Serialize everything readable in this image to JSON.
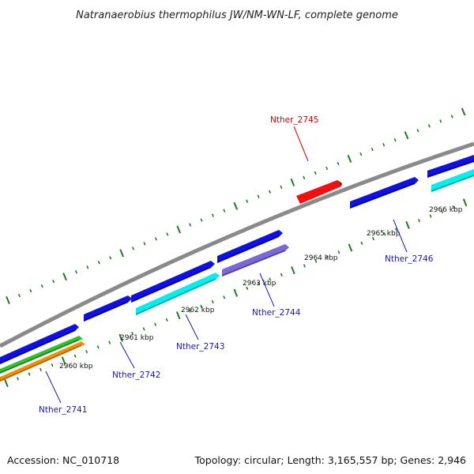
{
  "title": "Natranaerobius thermophilus JW/NM-WN-LF, complete genome",
  "footer": {
    "accession": "Accession: NC_010718",
    "summary": "Topology: circular; Length: 3,165,557 bp; Genes: 2,946"
  },
  "colors": {
    "backbone": "#8a8a8a",
    "tick": "#1f7a1f",
    "label_blue": "#1a1aa8",
    "label_red": "#cc0000",
    "gene_blue": "#1010e0",
    "gene_cyan": "#00f0f0",
    "gene_purple": "#7a68d8",
    "gene_red": "#f01010",
    "gene_green": "#30c030",
    "gene_orange": "#f0900a"
  },
  "scale_labels": [
    {
      "text": "2960 kbp"
    },
    {
      "text": "2961 kbp"
    },
    {
      "text": "2962 kbp"
    },
    {
      "text": "2963 kbp"
    },
    {
      "text": "2964 kbp"
    },
    {
      "text": "2965 kbp"
    },
    {
      "text": "2966 kbp"
    }
  ],
  "gene_labels": [
    {
      "text": "Nther_2741",
      "color": "label_blue"
    },
    {
      "text": "Nther_2742",
      "color": "label_blue"
    },
    {
      "text": "Nther_2743",
      "color": "label_blue"
    },
    {
      "text": "Nther_2744",
      "color": "label_blue"
    },
    {
      "text": "Nther_2745",
      "color": "label_red"
    },
    {
      "text": "Nther_2746",
      "color": "label_blue"
    }
  ]
}
